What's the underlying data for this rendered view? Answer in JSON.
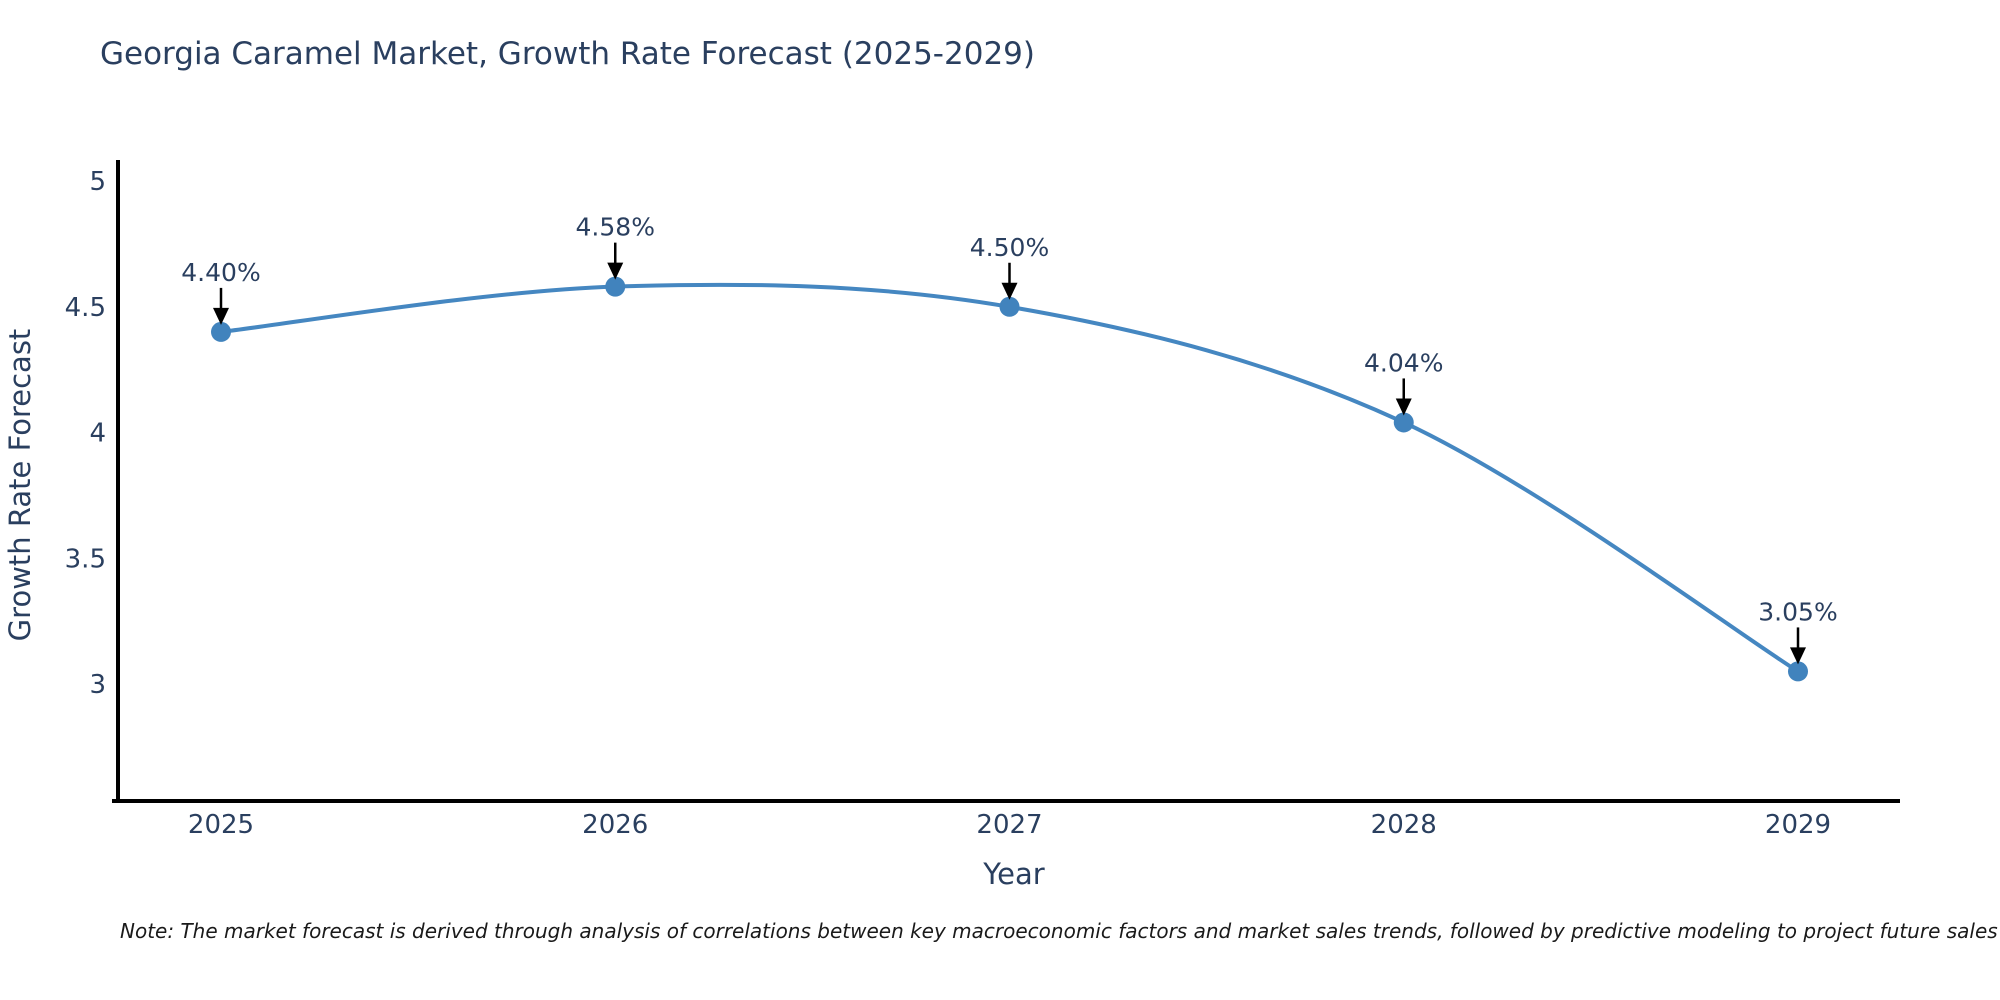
{
  "chart_data": {
    "type": "line",
    "title": "Georgia Caramel Market, Growth Rate Forecast (2025-2029)",
    "xlabel": "Year",
    "ylabel": "Growth Rate Forecast",
    "x": [
      "2025",
      "2026",
      "2027",
      "2028",
      "2029"
    ],
    "series": [
      {
        "name": "Growth Rate Forecast",
        "values": [
          4.4,
          4.58,
          4.5,
          4.04,
          3.05
        ]
      }
    ],
    "point_labels": [
      "4.40%",
      "4.58%",
      "4.50%",
      "4.04%",
      "3.05%"
    ],
    "yticks": [
      3,
      3.5,
      4,
      4.5,
      5
    ],
    "ylim": [
      2.53,
      5.08
    ],
    "line_shape": "spline",
    "markers": true,
    "grid": false,
    "legend_position": "none",
    "annotation_arrows": true,
    "line_color": "#4587c1",
    "marker_color": "#4183bd",
    "axis_color": "#000000",
    "arrow_color": "#000000",
    "label_color": "#2a3f5f"
  },
  "footnote": {
    "text": "Note: The market forecast is derived through analysis of correlations between key macroeconomic factors and market sales trends, followed by predictive modeling to project future sales"
  }
}
